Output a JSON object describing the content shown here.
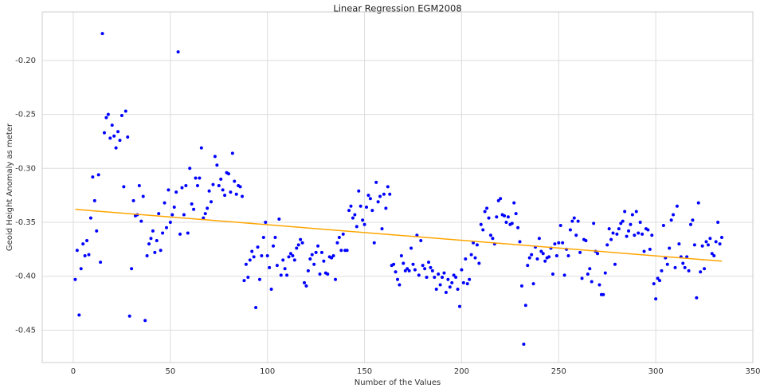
{
  "chart_data": {
    "type": "scatter",
    "title": "Linear Regression EGM2008",
    "x_label": "Number of the Values",
    "y_label": "Geoid Height Anomaly as meter",
    "xlim": [
      -16,
      350
    ],
    "ylim": [
      -0.48,
      -0.155
    ],
    "xticks": [
      0,
      50,
      100,
      150,
      200,
      250,
      300,
      350
    ],
    "yticks": [
      {
        "value": -0.45,
        "label": "-0.45"
      },
      {
        "value": -0.4,
        "label": "-0.40"
      },
      {
        "value": -0.35,
        "label": "-0.35"
      },
      {
        "value": -0.3,
        "label": "-0.30"
      },
      {
        "value": -0.25,
        "label": "-0.25"
      },
      {
        "value": -0.2,
        "label": "-0.20"
      }
    ],
    "grid": true,
    "series": [
      {
        "color": "#0000ff",
        "x": [
          1,
          2,
          3,
          4,
          5,
          6,
          7,
          8,
          9,
          10,
          11,
          12,
          13,
          14,
          15,
          16,
          17,
          18,
          19,
          20,
          21,
          22,
          23,
          24,
          25,
          26,
          27,
          28,
          29,
          30,
          31,
          32,
          33,
          34,
          35,
          36,
          37,
          38,
          39,
          40,
          41,
          42,
          43,
          44,
          45,
          46,
          47,
          48,
          49,
          50,
          51,
          52,
          53,
          54,
          55,
          56,
          57,
          58,
          59,
          60,
          61,
          62,
          63,
          64,
          65,
          66,
          67,
          68,
          69,
          70,
          71,
          72,
          73,
          74,
          75,
          76,
          77,
          78,
          79,
          80,
          81,
          82,
          83,
          84,
          85,
          86,
          87,
          88,
          89,
          90,
          91,
          92,
          93,
          94,
          95,
          96,
          97,
          98,
          99,
          100,
          101,
          102,
          103,
          104,
          105,
          106,
          107,
          108,
          109,
          110,
          111,
          112,
          113,
          114,
          115,
          116,
          117,
          118,
          119,
          120,
          121,
          122,
          123,
          124,
          125,
          126,
          127,
          128,
          129,
          130,
          131,
          132,
          133,
          134,
          135,
          136,
          137,
          138,
          139,
          140,
          141,
          142,
          143,
          144,
          145,
          146,
          147,
          148,
          149,
          150,
          151,
          152,
          153,
          154,
          155,
          156,
          157,
          158,
          159,
          160,
          161,
          162,
          163,
          164,
          165,
          166,
          167,
          168,
          169,
          170,
          171,
          172,
          173,
          174,
          175,
          176,
          177,
          178,
          179,
          180,
          181,
          182,
          183,
          184,
          185,
          186,
          187,
          188,
          189,
          190,
          191,
          192,
          193,
          194,
          195,
          196,
          197,
          198,
          199,
          200,
          201,
          202,
          203,
          204,
          205,
          206,
          207,
          208,
          209,
          210,
          211,
          212,
          213,
          214,
          215,
          216,
          217,
          218,
          219,
          220,
          221,
          222,
          223,
          224,
          225,
          226,
          227,
          228,
          229,
          230,
          231,
          232,
          233,
          234,
          235,
          236,
          237,
          238,
          239,
          240,
          241,
          242,
          243,
          244,
          245,
          246,
          247,
          248,
          249,
          250,
          251,
          252,
          253,
          254,
          255,
          256,
          257,
          258,
          259,
          260,
          261,
          262,
          263,
          264,
          265,
          266,
          267,
          268,
          269,
          270,
          271,
          272,
          273,
          274,
          275,
          276,
          277,
          278,
          279,
          280,
          281,
          282,
          283,
          284,
          285,
          286,
          287,
          288,
          289,
          290,
          291,
          292,
          293,
          294,
          295,
          296,
          297,
          298,
          299,
          300,
          301,
          302,
          303,
          304,
          305,
          306,
          307,
          308,
          309,
          310,
          311,
          312,
          313,
          314,
          315,
          316,
          317,
          318,
          319,
          320,
          321,
          322,
          323,
          324,
          325,
          326,
          327,
          328,
          329,
          330,
          331,
          332,
          333,
          334
        ],
        "values": [
          -0.403,
          -0.376,
          -0.436,
          -0.393,
          -0.37,
          -0.381,
          -0.367,
          -0.38,
          -0.346,
          -0.308,
          -0.33,
          -0.358,
          -0.306,
          -0.387,
          -0.175,
          -0.267,
          -0.253,
          -0.25,
          -0.272,
          -0.26,
          -0.27,
          -0.281,
          -0.266,
          -0.274,
          -0.251,
          -0.317,
          -0.247,
          -0.271,
          -0.437,
          -0.393,
          -0.33,
          -0.344,
          -0.343,
          -0.316,
          -0.349,
          -0.326,
          -0.441,
          -0.381,
          -0.37,
          -0.365,
          -0.358,
          -0.378,
          -0.367,
          -0.342,
          -0.376,
          -0.36,
          -0.332,
          -0.355,
          -0.32,
          -0.35,
          -0.343,
          -0.336,
          -0.322,
          -0.192,
          -0.361,
          -0.318,
          -0.343,
          -0.316,
          -0.36,
          -0.3,
          -0.333,
          -0.338,
          -0.309,
          -0.316,
          -0.309,
          -0.281,
          -0.346,
          -0.342,
          -0.337,
          -0.321,
          -0.331,
          -0.315,
          -0.289,
          -0.297,
          -0.316,
          -0.31,
          -0.32,
          -0.325,
          -0.304,
          -0.305,
          -0.322,
          -0.286,
          -0.312,
          -0.324,
          -0.316,
          -0.317,
          -0.326,
          -0.404,
          -0.389,
          -0.401,
          -0.385,
          -0.377,
          -0.382,
          -0.429,
          -0.373,
          -0.403,
          -0.381,
          -0.364,
          -0.35,
          -0.381,
          -0.392,
          -0.412,
          -0.372,
          -0.364,
          -0.39,
          -0.347,
          -0.399,
          -0.385,
          -0.393,
          -0.399,
          -0.382,
          -0.379,
          -0.381,
          -0.385,
          -0.374,
          -0.371,
          -0.366,
          -0.369,
          -0.406,
          -0.409,
          -0.395,
          -0.384,
          -0.38,
          -0.389,
          -0.378,
          -0.372,
          -0.398,
          -0.378,
          -0.386,
          -0.397,
          -0.398,
          -0.382,
          -0.383,
          -0.381,
          -0.403,
          -0.369,
          -0.364,
          -0.376,
          -0.361,
          -0.376,
          -0.376,
          -0.339,
          -0.335,
          -0.346,
          -0.343,
          -0.354,
          -0.321,
          -0.335,
          -0.348,
          -0.352,
          -0.336,
          -0.325,
          -0.328,
          -0.339,
          -0.369,
          -0.313,
          -0.331,
          -0.326,
          -0.356,
          -0.324,
          -0.337,
          -0.317,
          -0.324,
          -0.39,
          -0.389,
          -0.396,
          -0.403,
          -0.408,
          -0.381,
          -0.388,
          -0.395,
          -0.393,
          -0.395,
          -0.374,
          -0.389,
          -0.394,
          -0.362,
          -0.399,
          -0.367,
          -0.39,
          -0.393,
          -0.401,
          -0.387,
          -0.392,
          -0.395,
          -0.401,
          -0.412,
          -0.398,
          -0.408,
          -0.401,
          -0.397,
          -0.415,
          -0.403,
          -0.41,
          -0.406,
          -0.399,
          -0.401,
          -0.412,
          -0.428,
          -0.394,
          -0.406,
          -0.384,
          -0.407,
          -0.403,
          -0.38,
          -0.369,
          -0.383,
          -0.371,
          -0.388,
          -0.352,
          -0.357,
          -0.34,
          -0.337,
          -0.346,
          -0.362,
          -0.365,
          -0.37,
          -0.345,
          -0.33,
          -0.328,
          -0.343,
          -0.344,
          -0.35,
          -0.345,
          -0.352,
          -0.351,
          -0.332,
          -0.342,
          -0.355,
          -0.368,
          -0.409,
          -0.463,
          -0.427,
          -0.39,
          -0.383,
          -0.38,
          -0.407,
          -0.373,
          -0.384,
          -0.365,
          -0.377,
          -0.379,
          -0.386,
          -0.383,
          -0.382,
          -0.374,
          -0.398,
          -0.37,
          -0.381,
          -0.369,
          -0.353,
          -0.369,
          -0.399,
          -0.375,
          -0.381,
          -0.357,
          -0.349,
          -0.346,
          -0.362,
          -0.349,
          -0.378,
          -0.402,
          -0.366,
          -0.367,
          -0.398,
          -0.393,
          -0.405,
          -0.351,
          -0.377,
          -0.379,
          -0.408,
          -0.417,
          -0.417,
          -0.397,
          -0.371,
          -0.356,
          -0.366,
          -0.36,
          -0.389,
          -0.361,
          -0.356,
          -0.351,
          -0.349,
          -0.34,
          -0.363,
          -0.358,
          -0.352,
          -0.343,
          -0.362,
          -0.34,
          -0.36,
          -0.35,
          -0.361,
          -0.377,
          -0.356,
          -0.357,
          -0.375,
          -0.362,
          -0.407,
          -0.421,
          -0.402,
          -0.404,
          -0.395,
          -0.353,
          -0.383,
          -0.389,
          -0.374,
          -0.348,
          -0.343,
          -0.392,
          -0.335,
          -0.37,
          -0.382,
          -0.388,
          -0.392,
          -0.382,
          -0.395,
          -0.352,
          -0.348,
          -0.371,
          -0.42,
          -0.332,
          -0.396,
          -0.372,
          -0.393,
          -0.368,
          -0.371,
          -0.365,
          -0.379,
          -0.381,
          -0.368,
          -0.35,
          -0.37,
          -0.364
        ]
      }
    ],
    "regression_line": {
      "color": "#ffa500",
      "x": [
        1,
        334
      ],
      "values": [
        -0.338,
        -0.386
      ]
    }
  }
}
